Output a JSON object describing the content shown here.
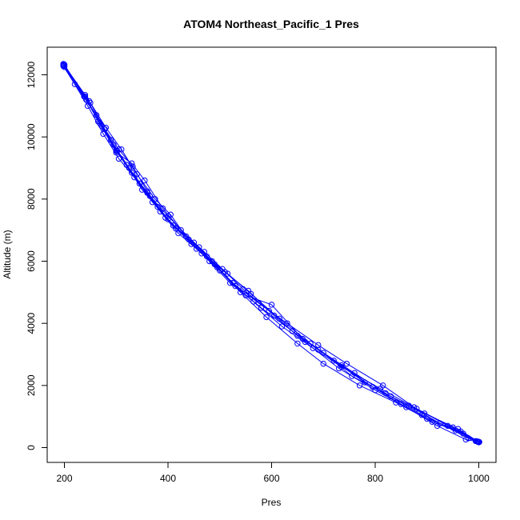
{
  "chart_data": {
    "type": "line",
    "title": "ATOM4 Northeast_Pacific_1 Pres",
    "xlabel": "Pres",
    "ylabel": "Altitude (m)",
    "xlim": [
      200,
      1000
    ],
    "ylim": [
      0,
      12000
    ],
    "x_ticks": [
      200,
      400,
      600,
      800,
      1000
    ],
    "y_ticks": [
      0,
      2000,
      4000,
      6000,
      8000,
      10000,
      12000
    ],
    "series_color": "#0000ff",
    "marker": "open-circle",
    "series": [
      {
        "points": [
          [
            1000,
            180
          ],
          [
            965,
            520
          ],
          [
            900,
            930
          ],
          [
            840,
            1450
          ],
          [
            770,
            2000
          ],
          [
            700,
            2700
          ],
          [
            650,
            3350
          ],
          [
            590,
            4200
          ],
          [
            540,
            5000
          ],
          [
            500,
            5700
          ],
          [
            455,
            6400
          ],
          [
            410,
            7150
          ],
          [
            370,
            7900
          ],
          [
            335,
            8700
          ],
          [
            300,
            9550
          ],
          [
            265,
            10500
          ],
          [
            240,
            11350
          ],
          [
            200,
            12300
          ]
        ]
      },
      {
        "points": [
          [
            998,
            190
          ],
          [
            950,
            650
          ],
          [
            880,
            1250
          ],
          [
            810,
            1900
          ],
          [
            735,
            2600
          ],
          [
            680,
            3200
          ],
          [
            620,
            3900
          ],
          [
            565,
            4700
          ],
          [
            520,
            5300
          ],
          [
            480,
            6000
          ],
          [
            440,
            6700
          ],
          [
            400,
            7350
          ],
          [
            360,
            8200
          ],
          [
            325,
            9000
          ],
          [
            295,
            9750
          ],
          [
            270,
            10400
          ],
          [
            240,
            11300
          ],
          [
            198,
            12350
          ]
        ]
      },
      {
        "points": [
          [
            996,
            200
          ],
          [
            975,
            260
          ],
          [
            920,
            700
          ],
          [
            860,
            1300
          ],
          [
            800,
            1850
          ],
          [
            730,
            2550
          ],
          [
            665,
            3400
          ],
          [
            605,
            4250
          ],
          [
            555,
            5050
          ],
          [
            510,
            5650
          ],
          [
            465,
            6250
          ],
          [
            420,
            6900
          ],
          [
            385,
            7600
          ],
          [
            345,
            8500
          ],
          [
            305,
            9300
          ],
          [
            275,
            10100
          ],
          [
            245,
            11000
          ],
          [
            200,
            12250
          ]
        ]
      },
      {
        "points": [
          [
            994,
            210
          ],
          [
            955,
            550
          ],
          [
            890,
            1050
          ],
          [
            820,
            1750
          ],
          [
            760,
            2400
          ],
          [
            690,
            3150
          ],
          [
            640,
            3750
          ],
          [
            580,
            4500
          ],
          [
            530,
            5200
          ],
          [
            490,
            5900
          ],
          [
            445,
            6550
          ],
          [
            405,
            7500
          ],
          [
            375,
            8000
          ],
          [
            340,
            8800
          ],
          [
            310,
            9600
          ],
          [
            280,
            10300
          ],
          [
            250,
            11100
          ],
          [
            200,
            12300
          ]
        ]
      },
      {
        "points": [
          [
            1000,
            170
          ],
          [
            970,
            450
          ],
          [
            910,
            830
          ],
          [
            850,
            1400
          ],
          [
            780,
            2100
          ],
          [
            720,
            2800
          ],
          [
            660,
            3500
          ],
          [
            600,
            4600
          ],
          [
            550,
            4900
          ],
          [
            495,
            5800
          ],
          [
            460,
            6450
          ],
          [
            415,
            7050
          ],
          [
            380,
            7750
          ],
          [
            350,
            8300
          ],
          [
            320,
            9100
          ],
          [
            290,
            9900
          ],
          [
            262,
            10700
          ],
          [
            220,
            11700
          ],
          [
            198,
            12280
          ]
        ]
      },
      {
        "points": [
          [
            999,
            190
          ],
          [
            960,
            600
          ],
          [
            895,
            1100
          ],
          [
            830,
            1650
          ],
          [
            755,
            2300
          ],
          [
            700,
            3050
          ],
          [
            650,
            3600
          ],
          [
            595,
            4400
          ],
          [
            545,
            5100
          ],
          [
            505,
            5750
          ],
          [
            470,
            6300
          ],
          [
            425,
            7000
          ],
          [
            390,
            7700
          ],
          [
            355,
            8600
          ],
          [
            330,
            9150
          ],
          [
            300,
            9500
          ],
          [
            268,
            10450
          ],
          [
            238,
            11300
          ],
          [
            198,
            12320
          ]
        ]
      },
      {
        "points": [
          [
            1001,
            180
          ],
          [
            940,
            700
          ],
          [
            875,
            1300
          ],
          [
            815,
            2000
          ],
          [
            745,
            2700
          ],
          [
            690,
            3300
          ],
          [
            630,
            4000
          ],
          [
            575,
            4650
          ],
          [
            525,
            5300
          ],
          [
            485,
            6000
          ],
          [
            450,
            6600
          ],
          [
            400,
            7450
          ],
          [
            365,
            8100
          ],
          [
            330,
            8850
          ],
          [
            302,
            9550
          ],
          [
            272,
            10350
          ],
          [
            242,
            11200
          ],
          [
            200,
            12330
          ]
        ]
      },
      {
        "points": [
          [
            997,
            200
          ],
          [
            980,
            300
          ],
          [
            925,
            780
          ],
          [
            865,
            1350
          ],
          [
            795,
            1950
          ],
          [
            735,
            2650
          ],
          [
            675,
            3350
          ],
          [
            615,
            4150
          ],
          [
            560,
            4950
          ],
          [
            515,
            5600
          ],
          [
            475,
            6150
          ],
          [
            435,
            6800
          ],
          [
            395,
            7400
          ],
          [
            360,
            8250
          ],
          [
            332,
            9050
          ],
          [
            305,
            9600
          ],
          [
            278,
            10250
          ],
          [
            248,
            11150
          ],
          [
            199,
            12310
          ]
        ]
      }
    ]
  }
}
